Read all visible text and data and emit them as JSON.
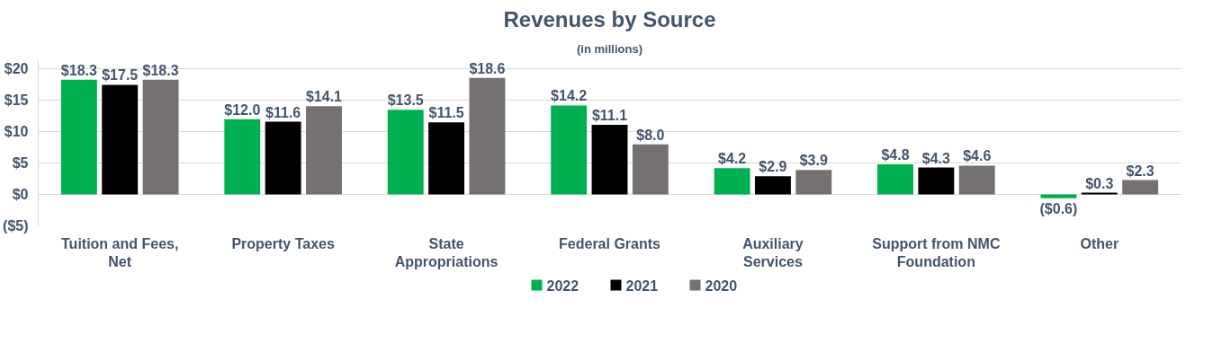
{
  "chart_data": {
    "type": "bar",
    "title": "Revenues by Source",
    "subtitle": "(in millions)",
    "categories": [
      "Tuition and Fees, Net",
      "Property Taxes",
      "State Appropriations",
      "Federal Grants",
      "Auxiliary Services",
      "Support from NMC Foundation",
      "Other"
    ],
    "series": [
      {
        "name": "2022",
        "color": "#00b050",
        "values": [
          18.3,
          12.0,
          13.5,
          14.2,
          4.2,
          4.8,
          -0.6
        ],
        "value_labels": [
          "$18.3",
          "$12.0",
          "$13.5",
          "$14.2",
          "$4.2",
          "$4.8",
          "($0.6)"
        ]
      },
      {
        "name": "2021",
        "color": "#000000",
        "values": [
          17.5,
          11.6,
          11.5,
          11.1,
          2.9,
          4.3,
          0.3
        ],
        "value_labels": [
          "$17.5",
          "$11.6",
          "$11.5",
          "$11.1",
          "$2.9",
          "$4.3",
          "$0.3"
        ]
      },
      {
        "name": "2020",
        "color": "#767171",
        "values": [
          18.3,
          14.1,
          18.6,
          8.0,
          3.9,
          4.6,
          2.3
        ],
        "value_labels": [
          "$18.3",
          "$14.1",
          "$18.6",
          "$8.0",
          "$3.9",
          "$4.6",
          "$2.3"
        ]
      }
    ],
    "ylim": [
      -5,
      21.5
    ],
    "yticks": [
      {
        "value": -5,
        "label": "($5)"
      },
      {
        "value": 0,
        "label": "$0"
      },
      {
        "value": 5,
        "label": "$5"
      },
      {
        "value": 10,
        "label": "$10"
      },
      {
        "value": 15,
        "label": "$15"
      },
      {
        "value": 20,
        "label": "$20"
      }
    ],
    "grid": "y",
    "legend": "bottom"
  }
}
